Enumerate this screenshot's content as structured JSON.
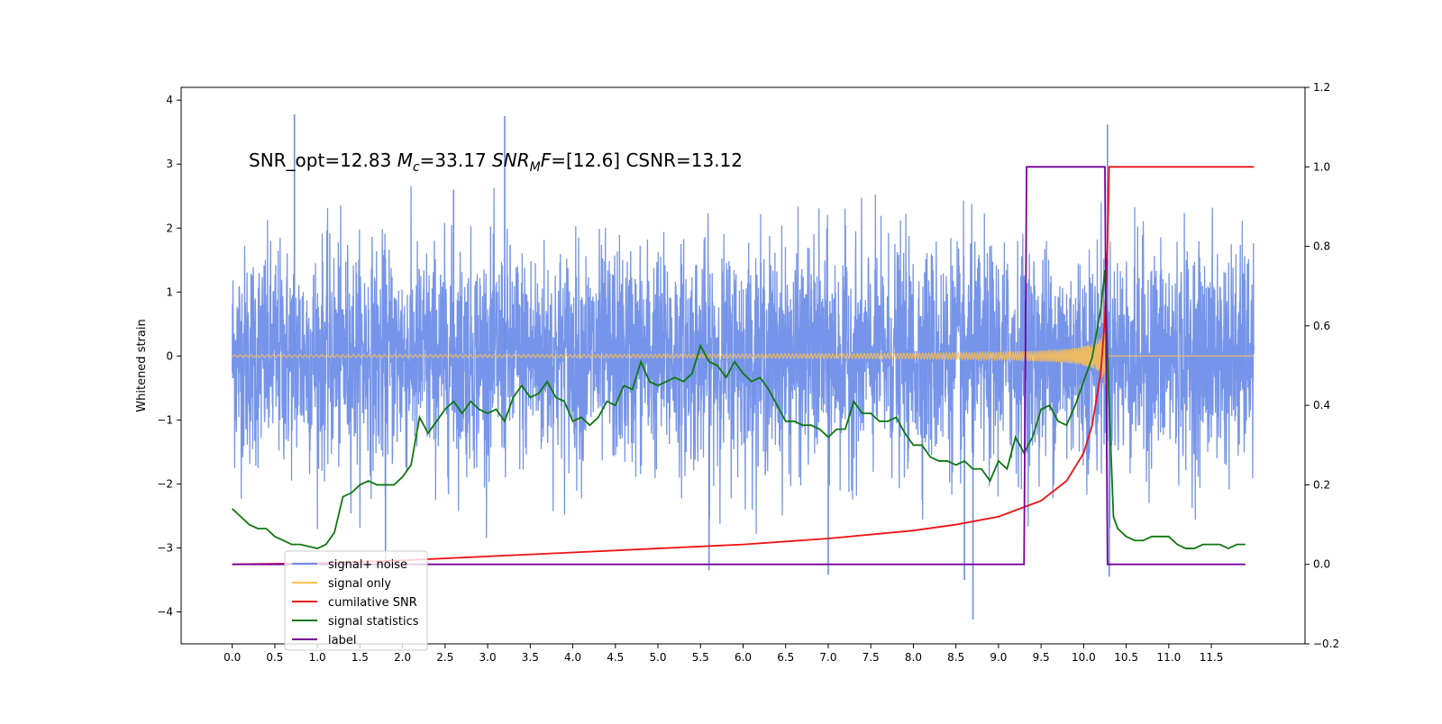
{
  "chart_data": {
    "type": "line",
    "annotation": {
      "prefix": "SNR_opt=12.83 ",
      "mc_symbol": "M",
      "mc_sub": "c",
      "mc_value": "=33.17  ",
      "snrmf_symbol": "SNR",
      "snrmf_sub": "M",
      "snrmf_f": "F",
      "snrmf_value": "=[12.6]   CSNR=13.12"
    },
    "ylabel": "Whitened strain",
    "x_ticks": [
      "0.0",
      "0.5",
      "1.0",
      "1.5",
      "2.0",
      "2.5",
      "3.0",
      "3.5",
      "4.0",
      "4.5",
      "5.0",
      "5.5",
      "6.0",
      "6.5",
      "7.0",
      "7.5",
      "8.0",
      "8.5",
      "9.0",
      "9.5",
      "10.0",
      "10.5",
      "11.0",
      "11.5"
    ],
    "x_range": [
      -0.6,
      12.6
    ],
    "y_left_ticks": [
      "−4",
      "−3",
      "−2",
      "−1",
      "0",
      "1",
      "2",
      "3",
      "4"
    ],
    "y_left_range": [
      -4.5,
      4.2
    ],
    "y_right_ticks": [
      "−0.2",
      "0.0",
      "0.2",
      "0.4",
      "0.6",
      "0.8",
      "1.0",
      "1.2"
    ],
    "y_right_range": [
      -0.2,
      1.2
    ],
    "legend_position": "lower-left",
    "colors": {
      "noise": "#6f8ee8",
      "signal": "#ffc04d",
      "cumulative": "#ee1111",
      "statistics": "#117711",
      "label": "#770099"
    },
    "legend": [
      {
        "key": "noise",
        "label": "signal+ noise"
      },
      {
        "key": "signal",
        "label": "signal only"
      },
      {
        "key": "cumulative",
        "label": "cumilative SNR"
      },
      {
        "key": "statistics",
        "label": "signal statistics"
      },
      {
        "key": "label",
        "label": "label"
      }
    ],
    "series_signal_plus_noise": {
      "description": "dense noise band roughly within ±1.6, spikes to ±3.8",
      "x_range": [
        0.0,
        12.0
      ],
      "spikes": [
        [
          0.73,
          3.78
        ],
        [
          3.2,
          3.75
        ],
        [
          10.28,
          3.62
        ],
        [
          8.7,
          -4.12
        ],
        [
          8.6,
          -3.5
        ],
        [
          10.3,
          -3.45
        ],
        [
          5.6,
          -3.35
        ],
        [
          7.0,
          -3.42
        ],
        [
          1.8,
          -3.2
        ],
        [
          2.6,
          2.6
        ]
      ]
    },
    "series_signal_only": {
      "x_range": [
        0.0,
        12.0
      ],
      "chirp_end": 10.28,
      "peak_amplitude": 0.78
    },
    "series_cumulative_snr": {
      "axis": "right",
      "x": [
        0.0,
        1.0,
        2.0,
        3.0,
        4.0,
        5.0,
        6.0,
        7.0,
        8.0,
        8.5,
        9.0,
        9.5,
        9.8,
        10.0,
        10.1,
        10.2,
        10.25,
        10.28,
        10.3,
        10.32,
        11.0,
        12.0
      ],
      "y": [
        0.0,
        0.003,
        0.01,
        0.02,
        0.03,
        0.04,
        0.05,
        0.065,
        0.085,
        0.1,
        0.12,
        0.16,
        0.21,
        0.28,
        0.35,
        0.48,
        0.62,
        0.8,
        1.0,
        1.0,
        1.0,
        1.0
      ]
    },
    "series_signal_statistics": {
      "axis": "right",
      "x": [
        0.0,
        0.1,
        0.2,
        0.3,
        0.4,
        0.5,
        0.6,
        0.7,
        0.8,
        0.9,
        1.0,
        1.1,
        1.2,
        1.3,
        1.4,
        1.5,
        1.6,
        1.7,
        1.8,
        1.9,
        2.0,
        2.1,
        2.2,
        2.3,
        2.4,
        2.5,
        2.6,
        2.7,
        2.8,
        2.9,
        3.0,
        3.1,
        3.2,
        3.3,
        3.4,
        3.5,
        3.6,
        3.7,
        3.8,
        3.9,
        4.0,
        4.1,
        4.2,
        4.3,
        4.4,
        4.5,
        4.6,
        4.7,
        4.8,
        4.9,
        5.0,
        5.1,
        5.2,
        5.3,
        5.4,
        5.5,
        5.6,
        5.7,
        5.8,
        5.9,
        6.0,
        6.1,
        6.2,
        6.3,
        6.4,
        6.5,
        6.6,
        6.7,
        6.8,
        6.9,
        7.0,
        7.1,
        7.2,
        7.3,
        7.4,
        7.5,
        7.6,
        7.7,
        7.8,
        7.9,
        8.0,
        8.1,
        8.2,
        8.3,
        8.4,
        8.5,
        8.6,
        8.7,
        8.8,
        8.9,
        9.0,
        9.1,
        9.2,
        9.3,
        9.4,
        9.5,
        9.6,
        9.7,
        9.8,
        9.9,
        10.0,
        10.1,
        10.2,
        10.25,
        10.3,
        10.35,
        10.4,
        10.5,
        10.6,
        10.7,
        10.8,
        10.9,
        11.0,
        11.1,
        11.2,
        11.3,
        11.4,
        11.5,
        11.6,
        11.7,
        11.8,
        11.9
      ],
      "y": [
        0.14,
        0.12,
        0.1,
        0.09,
        0.09,
        0.07,
        0.06,
        0.05,
        0.05,
        0.045,
        0.04,
        0.05,
        0.08,
        0.17,
        0.18,
        0.2,
        0.21,
        0.2,
        0.2,
        0.2,
        0.22,
        0.25,
        0.37,
        0.33,
        0.36,
        0.39,
        0.41,
        0.38,
        0.41,
        0.39,
        0.38,
        0.39,
        0.36,
        0.42,
        0.45,
        0.42,
        0.43,
        0.46,
        0.42,
        0.41,
        0.36,
        0.37,
        0.35,
        0.37,
        0.41,
        0.4,
        0.45,
        0.44,
        0.51,
        0.46,
        0.45,
        0.46,
        0.47,
        0.46,
        0.48,
        0.55,
        0.51,
        0.5,
        0.47,
        0.51,
        0.48,
        0.46,
        0.47,
        0.44,
        0.4,
        0.36,
        0.36,
        0.35,
        0.35,
        0.34,
        0.32,
        0.34,
        0.34,
        0.41,
        0.38,
        0.38,
        0.36,
        0.36,
        0.37,
        0.33,
        0.3,
        0.3,
        0.27,
        0.26,
        0.26,
        0.25,
        0.26,
        0.24,
        0.24,
        0.21,
        0.26,
        0.24,
        0.32,
        0.28,
        0.32,
        0.39,
        0.4,
        0.36,
        0.35,
        0.4,
        0.46,
        0.52,
        0.64,
        0.74,
        0.4,
        0.12,
        0.09,
        0.07,
        0.06,
        0.06,
        0.07,
        0.07,
        0.07,
        0.05,
        0.04,
        0.04,
        0.05,
        0.05,
        0.05,
        0.04,
        0.05,
        0.05
      ]
    },
    "series_label": {
      "axis": "right",
      "x": [
        0.0,
        9.3,
        9.33,
        10.25,
        10.28,
        11.9
      ],
      "y": [
        0.0,
        0.0,
        1.0,
        1.0,
        0.0,
        0.0
      ]
    }
  }
}
